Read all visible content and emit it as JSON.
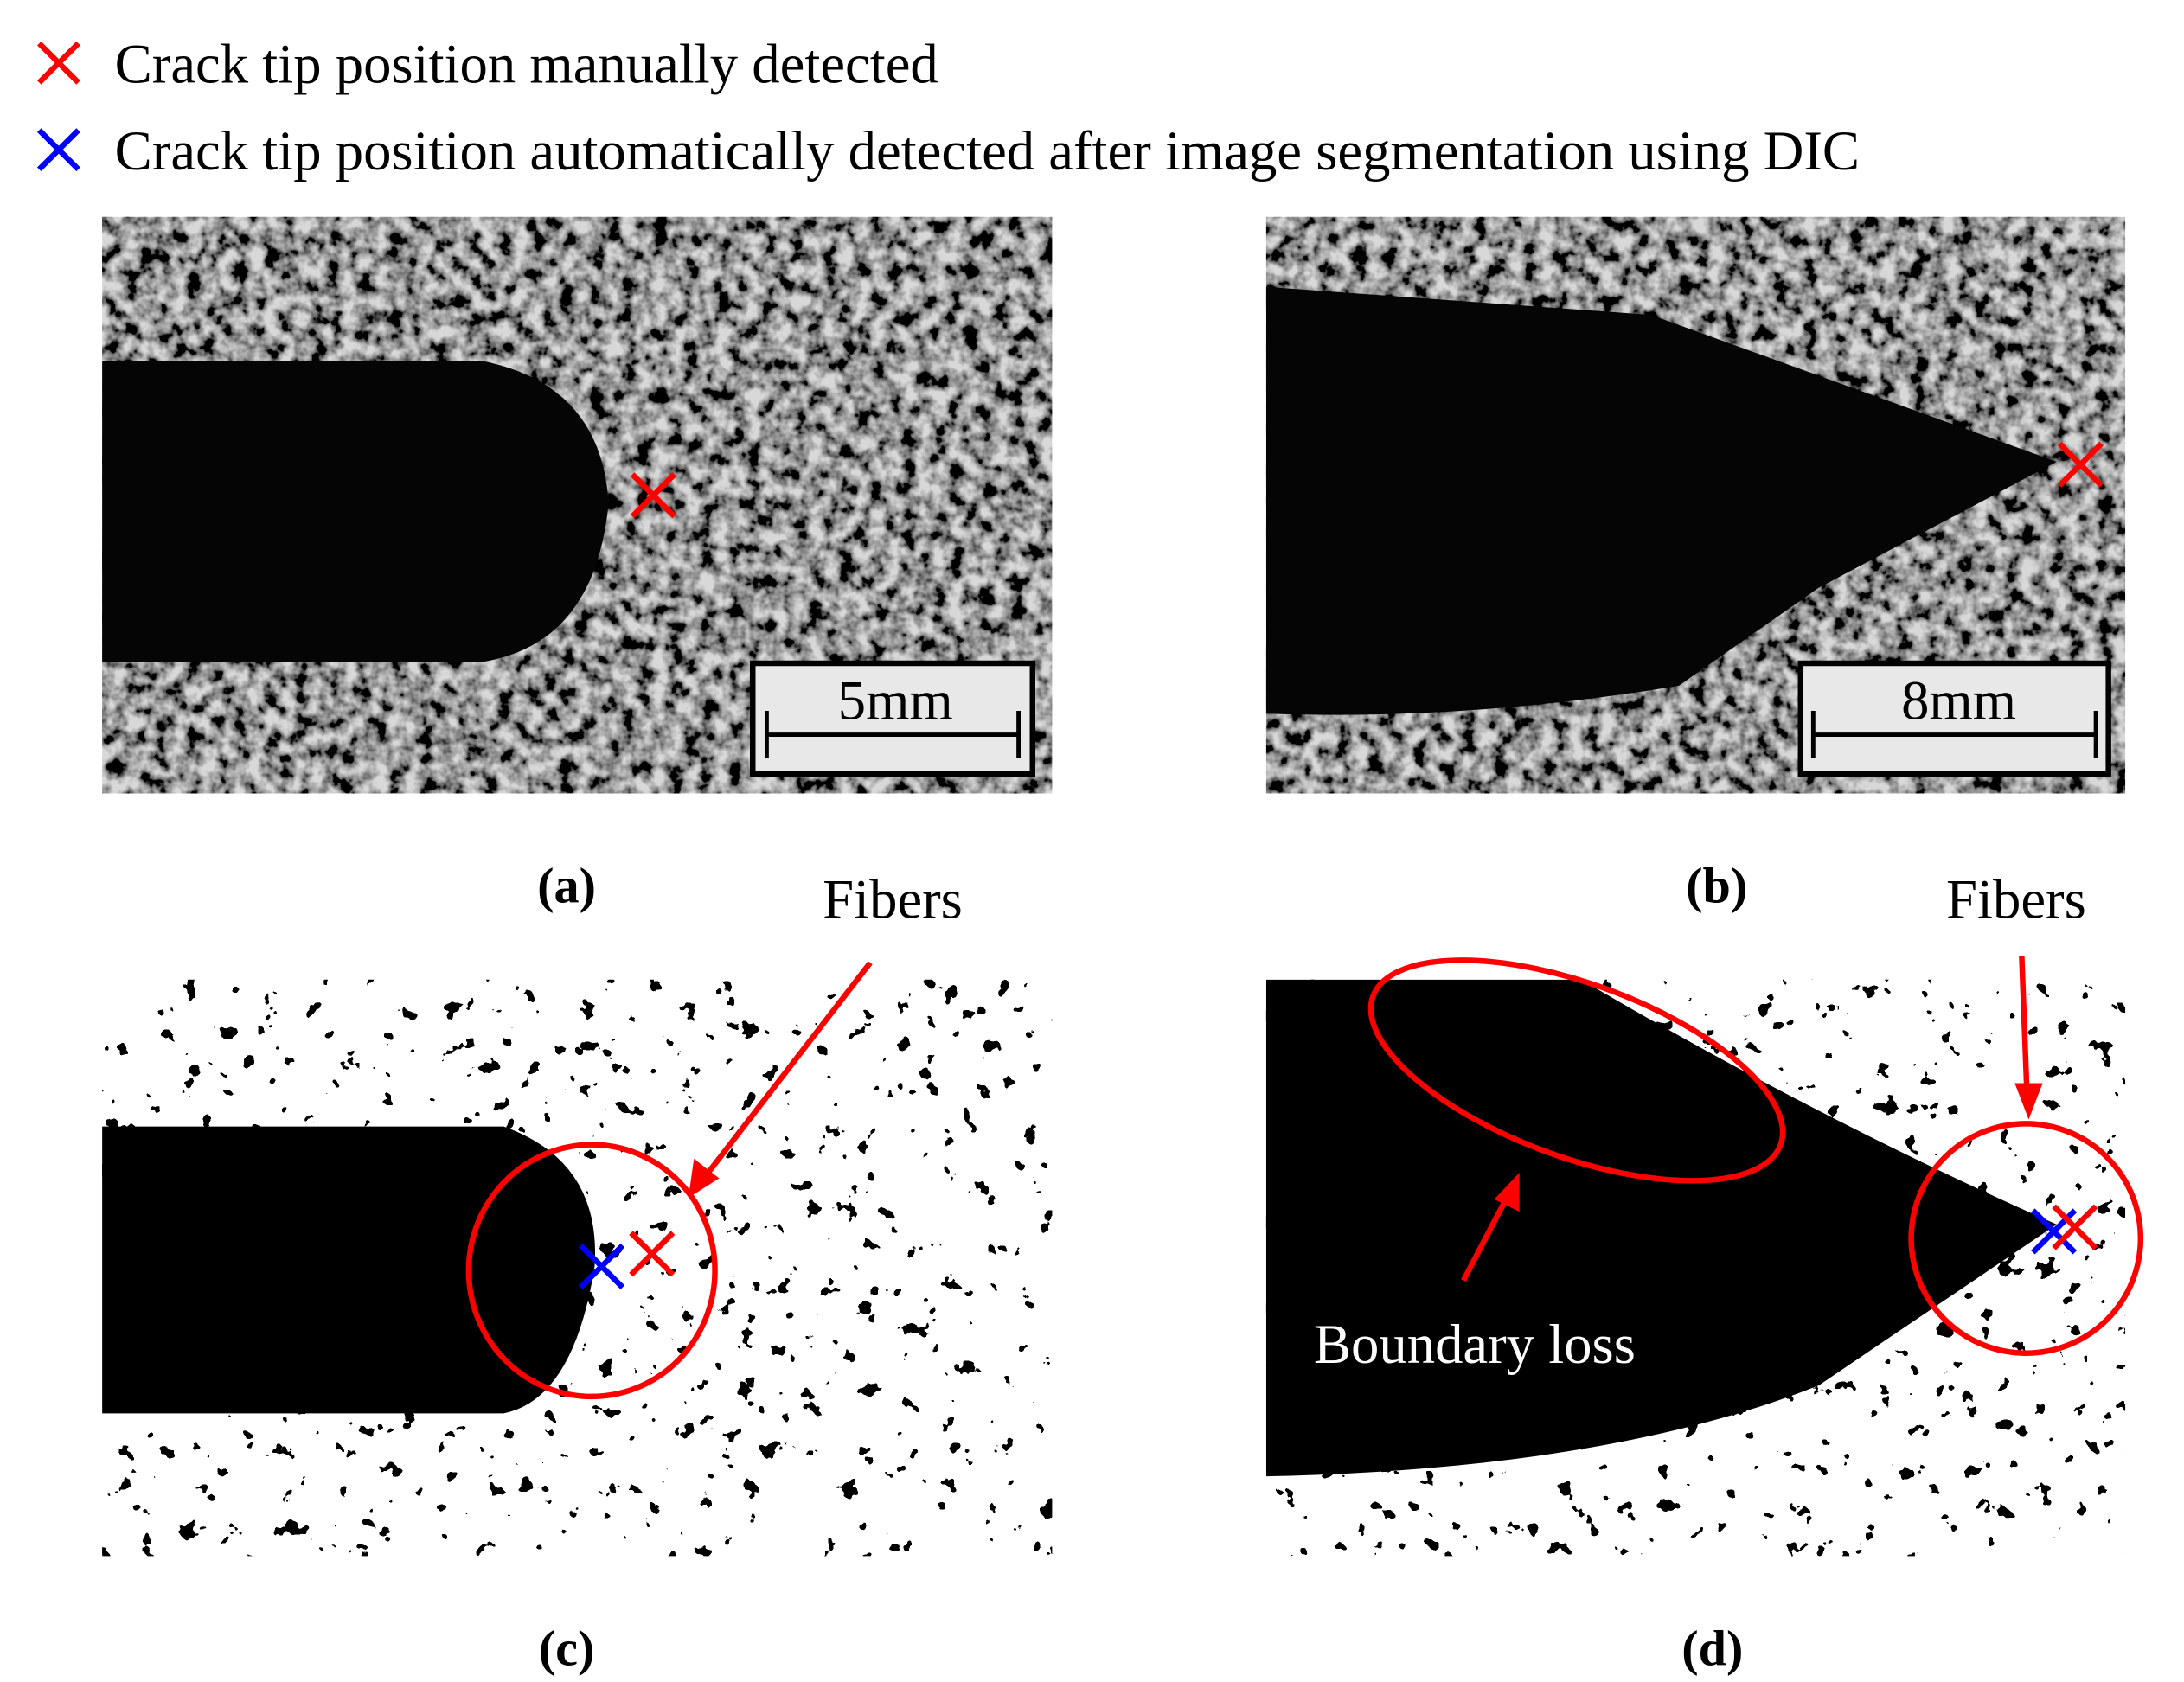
{
  "legend": [
    "Crack tip position manually detected",
    "Crack tip position automatically detected after image segmentation using DIC"
  ],
  "panels": [
    {
      "label": "(a)",
      "scale_bar": "5mm"
    },
    {
      "label": "(b)",
      "scale_bar": "8mm"
    },
    {
      "label": "(c)",
      "annotations": [
        "Fibers"
      ]
    },
    {
      "label": "(d)",
      "annotations": [
        "Fibers",
        "Boundary loss"
      ]
    }
  ]
}
